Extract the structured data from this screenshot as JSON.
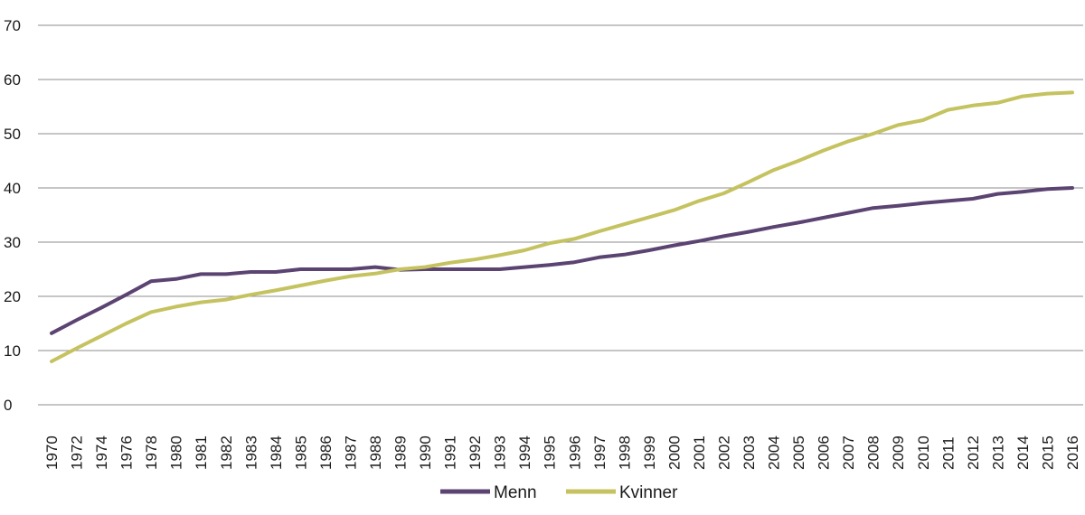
{
  "chart_data": {
    "type": "line",
    "title": "",
    "xlabel": "",
    "ylabel": "",
    "ylim": [
      0,
      70
    ],
    "yticks": [
      0,
      10,
      20,
      30,
      40,
      50,
      60,
      70
    ],
    "grid": "horizontal",
    "legend_position": "bottom-center",
    "x": [
      "1970",
      "1972",
      "1974",
      "1976",
      "1978",
      "1980",
      "1981",
      "1982",
      "1983",
      "1984",
      "1985",
      "1986",
      "1987",
      "1988",
      "1989",
      "1990",
      "1991",
      "1992",
      "1993",
      "1994",
      "1995",
      "1996",
      "1997",
      "1998",
      "1999",
      "2000",
      "2001",
      "2002",
      "2003",
      "2004",
      "2005",
      "2006",
      "2007",
      "2008",
      "2009",
      "2010",
      "2011",
      "2012",
      "2013",
      "2014",
      "2015",
      "2016"
    ],
    "series": [
      {
        "name": "Menn",
        "color": "#5b4372",
        "values": [
          13.2,
          15.6,
          17.9,
          20.3,
          22.8,
          23.2,
          24.1,
          24.1,
          24.5,
          24.5,
          25.0,
          25.0,
          25.0,
          25.4,
          24.9,
          25.0,
          25.0,
          25.0,
          25.0,
          25.4,
          25.8,
          26.3,
          27.2,
          27.7,
          28.5,
          29.4,
          30.2,
          31.1,
          31.9,
          32.8,
          33.6,
          34.5,
          35.4,
          36.3,
          36.7,
          37.2,
          37.6,
          38.0,
          38.9,
          39.3,
          39.8,
          40.0
        ]
      },
      {
        "name": "Kvinner",
        "color": "#c5c260",
        "values": [
          8.0,
          10.4,
          12.7,
          15.0,
          17.1,
          18.1,
          18.9,
          19.4,
          20.3,
          21.1,
          22.0,
          22.9,
          23.7,
          24.2,
          25.0,
          25.4,
          26.2,
          26.8,
          27.6,
          28.5,
          29.8,
          30.6,
          32.0,
          33.3,
          34.6,
          35.9,
          37.6,
          39.0,
          41.1,
          43.3,
          45.0,
          46.9,
          48.6,
          50.0,
          51.6,
          52.5,
          54.4,
          55.2,
          55.7,
          56.9,
          57.4,
          57.6
        ]
      }
    ]
  }
}
